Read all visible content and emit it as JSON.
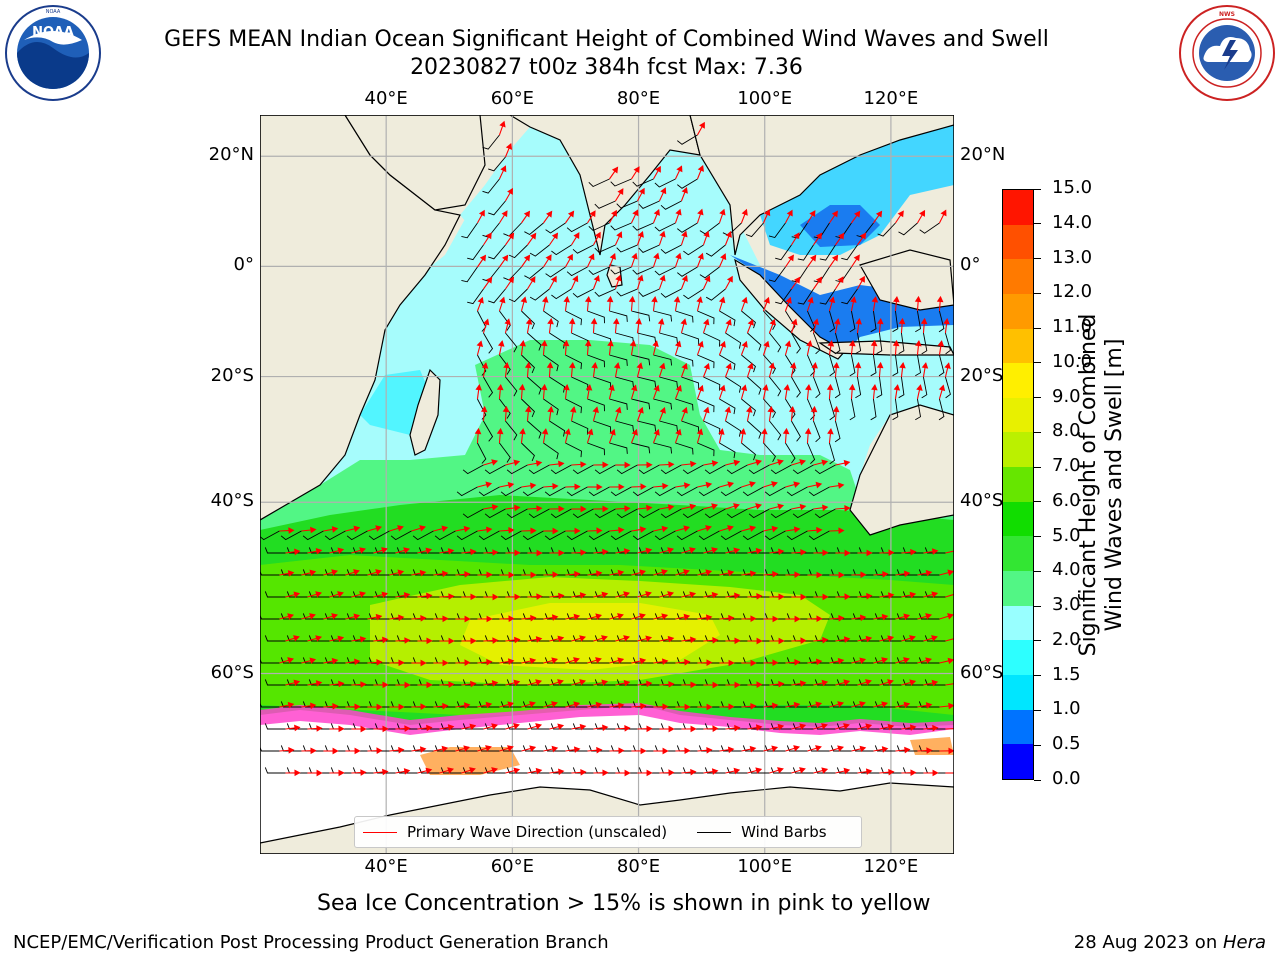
{
  "title": {
    "line1": "GEFS MEAN Indian Ocean Significant Height of Combined Wind Waves and Swell",
    "line2": "20230827 t00z 384h fcst   Max: 7.36"
  },
  "logos": {
    "left": {
      "text": "NOAA",
      "ring_text": "NATIONAL OCEANIC AND ATMOSPHERIC ADMINISTRATION · U.S. DEPARTMENT OF COMMERCE"
    },
    "right": {
      "ring_text": "NATIONAL WEATHER SERVICE"
    }
  },
  "map": {
    "lon_range": [
      20,
      130
    ],
    "lat_range": [
      -73,
      27
    ],
    "lon_ticks": [
      "40°E",
      "60°E",
      "80°E",
      "100°E",
      "120°E"
    ],
    "lat_ticks": [
      "20°N",
      "0°",
      "20°S",
      "40°S",
      "60°S"
    ],
    "lon_tick_values": [
      40,
      60,
      80,
      100,
      120
    ],
    "lat_tick_values": [
      20,
      0,
      -20,
      -40,
      -60
    ],
    "colors": {
      "land": "#efecdc",
      "ice_free": "#ffffff",
      "grid": "#b0b0b0",
      "wave_arrow": "#ff0000",
      "wind_barb": "#000000"
    }
  },
  "colorbar": {
    "label_line1": "Significant Height of Combined",
    "label_line2": "Wind Waves and Swell [m]",
    "ticks": [
      "0.0",
      "0.5",
      "1.0",
      "1.5",
      "2.0",
      "3.0",
      "4.0",
      "5.0",
      "6.0",
      "7.0",
      "8.0",
      "9.0",
      "10.0",
      "11.0",
      "12.0",
      "13.0",
      "14.0",
      "15.0"
    ],
    "colors": [
      "#0000ff",
      "#0073ff",
      "#00e6ff",
      "#2dffff",
      "#98ffff",
      "#52f685",
      "#33e633",
      "#11dd00",
      "#66e600",
      "#bbf000",
      "#e8f000",
      "#ffef00",
      "#ffc000",
      "#ff9a00",
      "#ff7a00",
      "#ff5000",
      "#ff1500"
    ]
  },
  "legend": {
    "wave_label": "Primary Wave Direction (unscaled)",
    "wind_label": "Wind Barbs"
  },
  "caption": "Sea Ice Concentration > 15% is shown in pink to yellow",
  "footer": {
    "left": "NCEP/EMC/Verification Post Processing Product Generation Branch",
    "right_prefix": "28 Aug 2023 on ",
    "right_machine": "Hera"
  }
}
